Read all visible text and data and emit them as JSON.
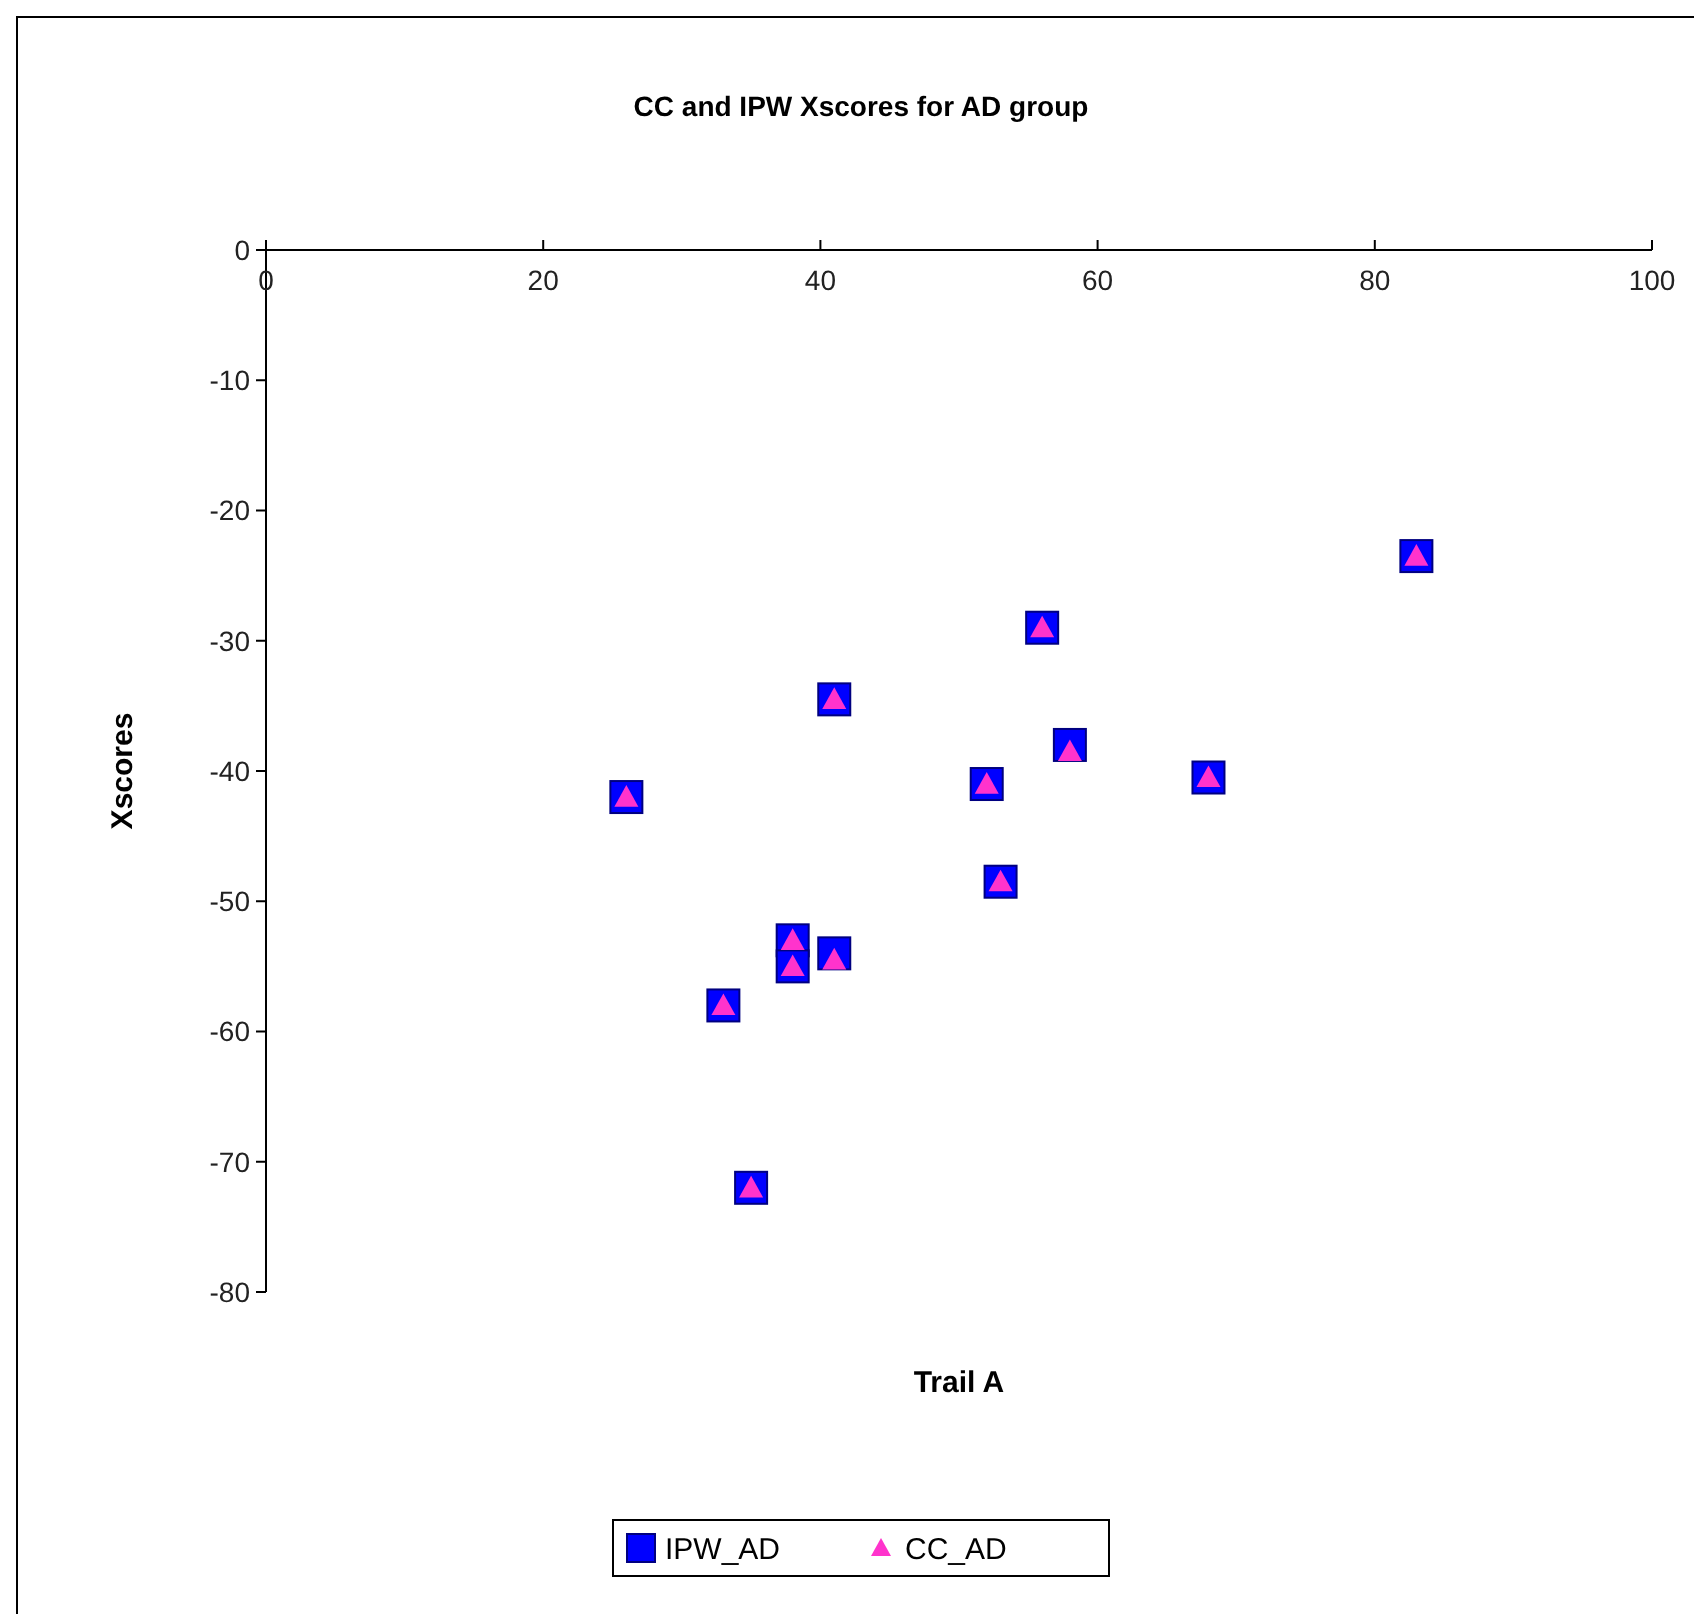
{
  "chart_data": {
    "type": "scatter",
    "title": "CC and IPW  Xscores for AD group",
    "xlabel": "Trail A",
    "ylabel": "Xscores",
    "xlim": [
      0,
      100
    ],
    "xticks": [
      0,
      20,
      40,
      60,
      80,
      100
    ],
    "ylim": [
      -80,
      0
    ],
    "yticks": [
      0,
      -10,
      -20,
      -30,
      -40,
      -50,
      -60,
      -70,
      -80
    ],
    "grid": false,
    "legend": "bottom",
    "series": [
      {
        "name": "IPW_AD",
        "color": "#0000ff",
        "marker": "square",
        "x": [
          26,
          33,
          35,
          38,
          38,
          41,
          41,
          52,
          53,
          56,
          58,
          68,
          83
        ],
        "values": [
          -42,
          -58,
          -72,
          -53,
          -55,
          -54,
          -34.5,
          -41,
          -48.5,
          -29,
          -38,
          -40.5,
          -23.5
        ]
      },
      {
        "name": "CC_AD",
        "color": "#ff33cc",
        "marker": "triangle",
        "x": [
          26,
          33,
          35,
          38,
          38,
          41,
          41,
          52,
          53,
          56,
          58,
          68,
          83
        ],
        "values": [
          -42,
          -58,
          -72,
          -53,
          -55,
          -54.5,
          -34.5,
          -41,
          -48.5,
          -29,
          -38.5,
          -40.5,
          -23.5
        ]
      }
    ]
  }
}
